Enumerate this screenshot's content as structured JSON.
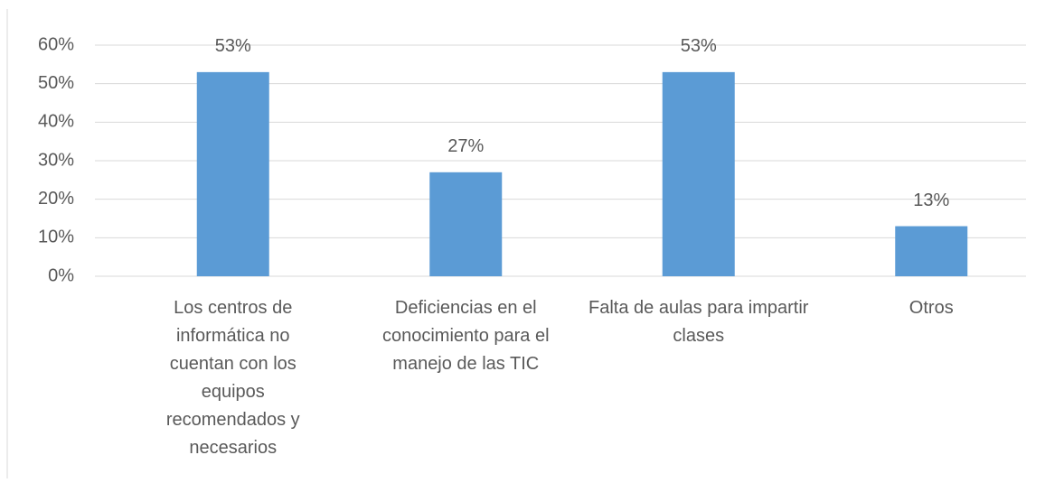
{
  "chart_data": {
    "type": "bar",
    "categories": [
      "Los centros de informática no cuentan con los equipos recomendados y necesarios",
      "Deficiencias en el conocimiento para el manejo de las TIC",
      "Falta de aulas para impartir clases",
      "Otros"
    ],
    "values": [
      53,
      27,
      53,
      13
    ],
    "value_labels": [
      "53%",
      "27%",
      "53%",
      "13%"
    ],
    "color": "#5b9bd5",
    "ylim": [
      0,
      60
    ],
    "yticks": [
      {
        "value": 0,
        "label": "0%"
      },
      {
        "value": 10,
        "label": "10%"
      },
      {
        "value": 20,
        "label": "20%"
      },
      {
        "value": 30,
        "label": "30%"
      },
      {
        "value": 40,
        "label": "40%"
      },
      {
        "value": 50,
        "label": "50%"
      },
      {
        "value": 60,
        "label": "60%"
      }
    ],
    "grid": true
  }
}
